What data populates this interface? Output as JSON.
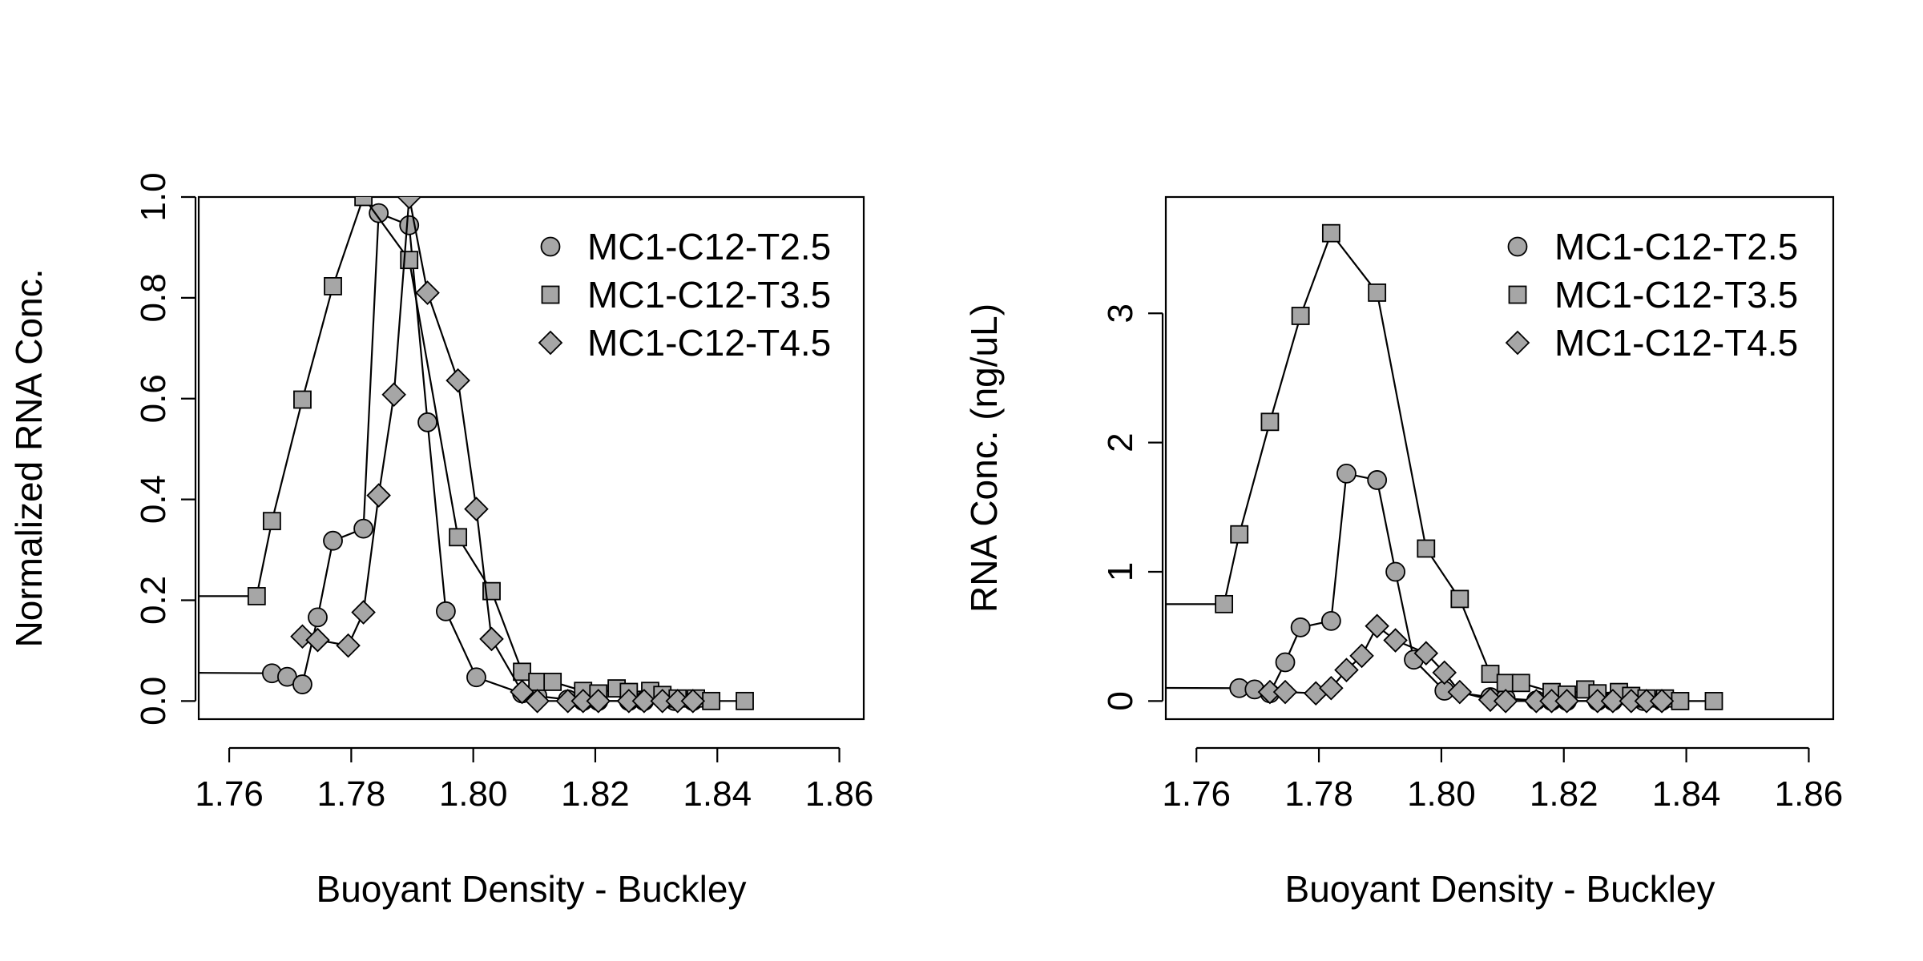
{
  "colors": {
    "marker_fill": "#a6a6a6",
    "line": "#000000",
    "background": "#ffffff"
  },
  "chart_data": [
    {
      "type": "line",
      "xlabel": "Buoyant Density - Buckley",
      "ylabel": "Normalized RNA Conc.",
      "xlim": [
        1.755,
        1.864
      ],
      "ylim": [
        -0.036,
        1.0
      ],
      "xticks": [
        "1.76",
        "1.78",
        "1.80",
        "1.82",
        "1.84",
        "1.86"
      ],
      "yticks": [
        "0.0",
        "0.2",
        "0.4",
        "0.6",
        "0.8",
        "1.0"
      ],
      "legend_position": "top-right",
      "series": [
        {
          "name": "MC1-C12-T2.5",
          "marker": "circle",
          "points": [
            [
              1.7,
              0.06
            ],
            [
              1.767,
              0.055
            ],
            [
              1.7695,
              0.048
            ],
            [
              1.772,
              0.033
            ],
            [
              1.7745,
              0.166
            ],
            [
              1.777,
              0.318
            ],
            [
              1.782,
              0.342
            ],
            [
              1.7845,
              0.968
            ],
            [
              1.7895,
              0.944
            ],
            [
              1.7925,
              0.553
            ],
            [
              1.7955,
              0.178
            ],
            [
              1.8005,
              0.047
            ],
            [
              1.808,
              0.015
            ],
            [
              1.8105,
              0.01
            ],
            [
              1.8155,
              0.003
            ],
            [
              1.818,
              0.0
            ],
            [
              1.8205,
              0.0
            ],
            [
              1.8255,
              0.0
            ],
            [
              1.828,
              0.0
            ],
            [
              1.833,
              0.0
            ],
            [
              1.836,
              0.0
            ]
          ]
        },
        {
          "name": "MC1-C12-T3.5",
          "marker": "square",
          "points": [
            [
              1.7,
              0.208
            ],
            [
              1.7645,
              0.208
            ],
            [
              1.767,
              0.357
            ],
            [
              1.772,
              0.598
            ],
            [
              1.777,
              0.823
            ],
            [
              1.782,
              1.0
            ],
            [
              1.7895,
              0.875
            ],
            [
              1.7975,
              0.325
            ],
            [
              1.803,
              0.218
            ],
            [
              1.808,
              0.058
            ],
            [
              1.8105,
              0.038
            ],
            [
              1.813,
              0.038
            ],
            [
              1.818,
              0.02
            ],
            [
              1.8205,
              0.015
            ],
            [
              1.8235,
              0.025
            ],
            [
              1.8255,
              0.018
            ],
            [
              1.829,
              0.02
            ],
            [
              1.831,
              0.012
            ],
            [
              1.8335,
              0.005
            ],
            [
              1.8365,
              0.005
            ],
            [
              1.839,
              0.0
            ],
            [
              1.8445,
              0.0
            ]
          ]
        },
        {
          "name": "MC1-C12-T4.5",
          "marker": "diamond",
          "points": [
            [
              1.772,
              0.128
            ],
            [
              1.7745,
              0.121
            ],
            [
              1.7795,
              0.11
            ],
            [
              1.782,
              0.176
            ],
            [
              1.7845,
              0.408
            ],
            [
              1.787,
              0.608
            ],
            [
              1.7895,
              1.0
            ],
            [
              1.7925,
              0.81
            ],
            [
              1.7975,
              0.636
            ],
            [
              1.8005,
              0.381
            ],
            [
              1.803,
              0.123
            ],
            [
              1.808,
              0.018
            ],
            [
              1.8105,
              0.0
            ],
            [
              1.8155,
              0.0
            ],
            [
              1.818,
              0.0
            ],
            [
              1.8205,
              0.0
            ],
            [
              1.8255,
              0.0
            ],
            [
              1.828,
              0.0
            ],
            [
              1.831,
              0.0
            ],
            [
              1.8335,
              0.0
            ],
            [
              1.836,
              0.0
            ]
          ]
        }
      ]
    },
    {
      "type": "line",
      "xlabel": "Buoyant Density - Buckley",
      "ylabel": "RNA Conc.  (ng/uL)",
      "xlim": [
        1.755,
        1.864
      ],
      "ylim": [
        -0.14,
        3.9
      ],
      "xticks": [
        "1.76",
        "1.78",
        "1.80",
        "1.82",
        "1.84",
        "1.86"
      ],
      "yticks": [
        "0",
        "1",
        "2",
        "3"
      ],
      "legend_position": "top-right",
      "series": [
        {
          "name": "MC1-C12-T2.5",
          "marker": "circle",
          "points": [
            [
              1.7,
              0.11
            ],
            [
              1.767,
              0.1
            ],
            [
              1.7695,
              0.09
            ],
            [
              1.772,
              0.06
            ],
            [
              1.7745,
              0.3
            ],
            [
              1.777,
              0.57
            ],
            [
              1.782,
              0.62
            ],
            [
              1.7845,
              1.76
            ],
            [
              1.7895,
              1.71
            ],
            [
              1.7925,
              1.0
            ],
            [
              1.7955,
              0.32
            ],
            [
              1.8005,
              0.08
            ],
            [
              1.808,
              0.03
            ],
            [
              1.8105,
              0.02
            ],
            [
              1.8155,
              0.005
            ],
            [
              1.818,
              0.0
            ],
            [
              1.8205,
              0.0
            ],
            [
              1.8255,
              0.0
            ],
            [
              1.828,
              0.0
            ],
            [
              1.833,
              0.0
            ],
            [
              1.836,
              0.0
            ]
          ]
        },
        {
          "name": "MC1-C12-T3.5",
          "marker": "square",
          "points": [
            [
              1.7,
              0.75
            ],
            [
              1.7645,
              0.75
            ],
            [
              1.767,
              1.29
            ],
            [
              1.772,
              2.16
            ],
            [
              1.777,
              2.98
            ],
            [
              1.782,
              3.62
            ],
            [
              1.7895,
              3.16
            ],
            [
              1.7975,
              1.18
            ],
            [
              1.803,
              0.79
            ],
            [
              1.808,
              0.21
            ],
            [
              1.8105,
              0.14
            ],
            [
              1.813,
              0.14
            ],
            [
              1.818,
              0.07
            ],
            [
              1.8205,
              0.05
            ],
            [
              1.8235,
              0.09
            ],
            [
              1.8255,
              0.06
            ],
            [
              1.829,
              0.07
            ],
            [
              1.831,
              0.04
            ],
            [
              1.8335,
              0.02
            ],
            [
              1.8365,
              0.02
            ],
            [
              1.839,
              0.0
            ],
            [
              1.8445,
              0.0
            ]
          ]
        },
        {
          "name": "MC1-C12-T4.5",
          "marker": "diamond",
          "points": [
            [
              1.772,
              0.07
            ],
            [
              1.7745,
              0.07
            ],
            [
              1.7795,
              0.06
            ],
            [
              1.782,
              0.1
            ],
            [
              1.7845,
              0.24
            ],
            [
              1.787,
              0.35
            ],
            [
              1.7895,
              0.58
            ],
            [
              1.7925,
              0.47
            ],
            [
              1.7975,
              0.37
            ],
            [
              1.8005,
              0.22
            ],
            [
              1.803,
              0.07
            ],
            [
              1.808,
              0.01
            ],
            [
              1.8105,
              0.0
            ],
            [
              1.8155,
              0.0
            ],
            [
              1.818,
              0.0
            ],
            [
              1.8205,
              0.0
            ],
            [
              1.8255,
              0.0
            ],
            [
              1.828,
              0.0
            ],
            [
              1.831,
              0.0
            ],
            [
              1.8335,
              0.0
            ],
            [
              1.836,
              0.0
            ]
          ]
        }
      ]
    }
  ]
}
